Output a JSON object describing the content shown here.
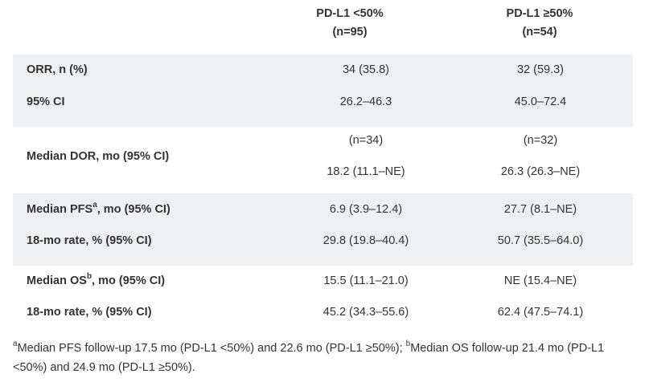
{
  "columns": [
    {
      "title": "PD-L1 <50%",
      "n": "(n=95)"
    },
    {
      "title": "PD-L1 ≥50%",
      "n": "(n=54)"
    }
  ],
  "rows": {
    "orr": {
      "label": "ORR, n (%)",
      "c1": "34 (35.8)",
      "c2": "32 (59.3)"
    },
    "orr_ci": {
      "label": "95% CI",
      "c1": "26.2–46.3",
      "c2": "45.0–72.4"
    },
    "dor": {
      "label": "Median DOR, mo (95% CI)",
      "c1_n": "(n=34)",
      "c2_n": "(n=32)",
      "c1": "18.2 (11.1–NE)",
      "c2": "26.3 (26.3–NE)"
    },
    "pfs": {
      "label_pre": "Median PFS",
      "label_sup": "a",
      "label_post": ", mo (95% CI)",
      "c1": "6.9 (3.9–12.4)",
      "c2": "27.7 (8.1–NE)"
    },
    "pfs_18": {
      "label": "18-mo rate, % (95% CI)",
      "c1": "29.8 (19.8–40.4)",
      "c2": "50.7 (35.5–64.0)"
    },
    "os": {
      "label_pre": "Median OS",
      "label_sup": "b",
      "label_post": ", mo (95% CI)",
      "c1": "15.5 (11.1–21.0)",
      "c2": "NE (15.4–NE)"
    },
    "os_18": {
      "label": "18-mo rate, % (95% CI)",
      "c1": "45.2 (34.3–55.6)",
      "c2": "62.4 (47.5–74.1)"
    }
  },
  "footnote": {
    "a_mark": "a",
    "a_text": "Median PFS follow-up 17.5 mo (PD-L1 <50%) and 22.6 mo (PD-L1 ≥50%); ",
    "b_mark": "b",
    "b_text": "Median OS follow-up 21.4 mo (PD-L1 <50%) and 24.9 mo (PD-L1 ≥50%)."
  }
}
